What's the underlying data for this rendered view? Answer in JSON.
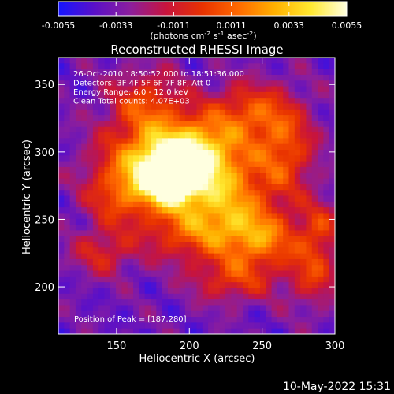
{
  "chart_data": {
    "type": "heatmap",
    "title": "Reconstructed RHESSI Image",
    "xlabel": "Heliocentric X (arcsec)",
    "ylabel": "Heliocentric Y (arcsec)",
    "xlim": [
      110,
      300
    ],
    "ylim": [
      165,
      370
    ],
    "xticks": [
      150,
      200,
      250,
      300
    ],
    "yticks": [
      200,
      250,
      300,
      350
    ],
    "colorbar": {
      "min": -0.0055,
      "max": 0.0055,
      "ticks": [
        "-0.0055",
        "-0.0033",
        "-0.0011",
        "0.0011",
        "0.0033",
        "0.0055"
      ],
      "unit_label": "(photons cm-2 s-1 asec-2)",
      "colors": [
        "#1515ff",
        "#5a10c8",
        "#8c1e9c",
        "#c8143c",
        "#e83200",
        "#ff6a00",
        "#ffb000",
        "#ffe830",
        "#ffffe0"
      ]
    },
    "info_lines": [
      "26-Oct-2010 18:50:52.000 to 18:51:36.000",
      "Detectors: 3F 4F 5F 6F 7F 8F, Att 0",
      "Energy Range: 6.0 - 12.0 keV",
      "Clean     Total counts: 4.07E+03"
    ],
    "peak_label": "Position of Peak = [187,280]",
    "peak": [
      187,
      280
    ],
    "sources": [
      {
        "x": 187,
        "y": 280,
        "amp": 1.0,
        "sx": 14,
        "sy": 14
      },
      {
        "x": 205,
        "y": 300,
        "amp": 0.7,
        "sx": 22,
        "sy": 18
      },
      {
        "x": 170,
        "y": 290,
        "amp": 0.55,
        "sx": 25,
        "sy": 20
      },
      {
        "x": 225,
        "y": 265,
        "amp": 0.55,
        "sx": 20,
        "sy": 22
      },
      {
        "x": 250,
        "y": 235,
        "amp": 0.5,
        "sx": 18,
        "sy": 15
      },
      {
        "x": 265,
        "y": 300,
        "amp": 0.45,
        "sx": 15,
        "sy": 25
      },
      {
        "x": 240,
        "y": 330,
        "amp": 0.4,
        "sx": 20,
        "sy": 15
      },
      {
        "x": 170,
        "y": 335,
        "amp": 0.4,
        "sx": 18,
        "sy": 18
      },
      {
        "x": 200,
        "y": 240,
        "amp": 0.4,
        "sx": 25,
        "sy": 15
      },
      {
        "x": 230,
        "y": 205,
        "amp": 0.35,
        "sx": 20,
        "sy": 12
      },
      {
        "x": 285,
        "y": 210,
        "amp": 0.35,
        "sx": 12,
        "sy": 18
      },
      {
        "x": 140,
        "y": 225,
        "amp": 0.3,
        "sx": 15,
        "sy": 12
      },
      {
        "x": 150,
        "y": 265,
        "amp": 0.3,
        "sx": 15,
        "sy": 15
      },
      {
        "x": 290,
        "y": 245,
        "amp": 0.3,
        "sx": 10,
        "sy": 15
      }
    ]
  },
  "footer": {
    "timestamp": "10-May-2022 15:31"
  }
}
